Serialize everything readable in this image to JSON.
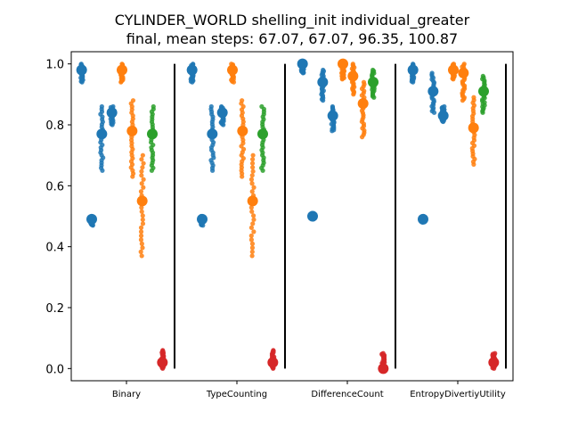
{
  "chart_data": {
    "type": "scatter",
    "title": [
      "CYLINDER_WORLD shelling_init individual_greater",
      "final, mean steps: 67.07, 67.07, 96.35, 100.87"
    ],
    "xlabel": "",
    "ylabel": "",
    "categories": [
      "Binary",
      "TypeCounting",
      "DifferenceCount",
      "EntropyDivertiyUtility"
    ],
    "ylim": [
      -0.04,
      1.04
    ],
    "yticks": [
      0.0,
      0.2,
      0.4,
      0.6,
      0.8,
      1.0
    ],
    "ytick_labels": [
      "0.0",
      "0.2",
      "0.4",
      "0.6",
      "0.8",
      "1.0"
    ],
    "colors": {
      "blue": "#1f77b4",
      "orange": "#ff7f0e",
      "green": "#2ca02c",
      "red": "#d62728",
      "separator": "#000000"
    },
    "groups": [
      {
        "category": "Binary",
        "strips": [
          {
            "color": "blue",
            "mean": 0.98,
            "min": 0.94,
            "max": 1.0
          },
          {
            "color": "blue",
            "mean": 0.49,
            "min": 0.47,
            "max": 0.5
          },
          {
            "color": "blue",
            "mean": 0.77,
            "min": 0.65,
            "max": 0.86
          },
          {
            "color": "blue",
            "mean": 0.84,
            "min": 0.8,
            "max": 0.86
          },
          {
            "color": "orange",
            "mean": 0.98,
            "min": 0.94,
            "max": 1.0
          },
          {
            "color": "orange",
            "mean": 0.78,
            "min": 0.63,
            "max": 0.88
          },
          {
            "color": "orange",
            "mean": 0.55,
            "min": 0.37,
            "max": 0.7
          },
          {
            "color": "green",
            "mean": 0.77,
            "min": 0.65,
            "max": 0.86
          },
          {
            "color": "red",
            "mean": 0.02,
            "min": 0.0,
            "max": 0.06
          }
        ]
      },
      {
        "category": "TypeCounting",
        "strips": [
          {
            "color": "blue",
            "mean": 0.98,
            "min": 0.94,
            "max": 1.0
          },
          {
            "color": "blue",
            "mean": 0.49,
            "min": 0.47,
            "max": 0.5
          },
          {
            "color": "blue",
            "mean": 0.77,
            "min": 0.65,
            "max": 0.86
          },
          {
            "color": "blue",
            "mean": 0.84,
            "min": 0.8,
            "max": 0.86
          },
          {
            "color": "orange",
            "mean": 0.98,
            "min": 0.94,
            "max": 1.0
          },
          {
            "color": "orange",
            "mean": 0.78,
            "min": 0.63,
            "max": 0.88
          },
          {
            "color": "orange",
            "mean": 0.55,
            "min": 0.37,
            "max": 0.7
          },
          {
            "color": "green",
            "mean": 0.77,
            "min": 0.65,
            "max": 0.86
          },
          {
            "color": "red",
            "mean": 0.02,
            "min": 0.0,
            "max": 0.06
          }
        ]
      },
      {
        "category": "DifferenceCount",
        "strips": [
          {
            "color": "blue",
            "mean": 1.0,
            "min": 0.97,
            "max": 1.0
          },
          {
            "color": "blue",
            "mean": 0.5,
            "min": 0.49,
            "max": 0.51
          },
          {
            "color": "blue",
            "mean": 0.94,
            "min": 0.88,
            "max": 0.98
          },
          {
            "color": "blue",
            "mean": 0.83,
            "min": 0.78,
            "max": 0.86
          },
          {
            "color": "orange",
            "mean": 1.0,
            "min": 0.95,
            "max": 1.0
          },
          {
            "color": "orange",
            "mean": 0.96,
            "min": 0.9,
            "max": 1.0
          },
          {
            "color": "orange",
            "mean": 0.87,
            "min": 0.76,
            "max": 0.94
          },
          {
            "color": "green",
            "mean": 0.94,
            "min": 0.89,
            "max": 0.98
          },
          {
            "color": "red",
            "mean": 0.0,
            "min": 0.0,
            "max": 0.05
          }
        ]
      },
      {
        "category": "EntropyDivertiyUtility",
        "strips": [
          {
            "color": "blue",
            "mean": 0.98,
            "min": 0.94,
            "max": 1.0
          },
          {
            "color": "blue",
            "mean": 0.49,
            "min": 0.48,
            "max": 0.5
          },
          {
            "color": "blue",
            "mean": 0.91,
            "min": 0.84,
            "max": 0.97
          },
          {
            "color": "blue",
            "mean": 0.83,
            "min": 0.81,
            "max": 0.86
          },
          {
            "color": "orange",
            "mean": 0.98,
            "min": 0.95,
            "max": 1.0
          },
          {
            "color": "orange",
            "mean": 0.97,
            "min": 0.88,
            "max": 1.0
          },
          {
            "color": "orange",
            "mean": 0.79,
            "min": 0.67,
            "max": 0.89
          },
          {
            "color": "green",
            "mean": 0.91,
            "min": 0.84,
            "max": 0.96
          },
          {
            "color": "red",
            "mean": 0.02,
            "min": 0.0,
            "max": 0.05
          }
        ]
      }
    ]
  }
}
